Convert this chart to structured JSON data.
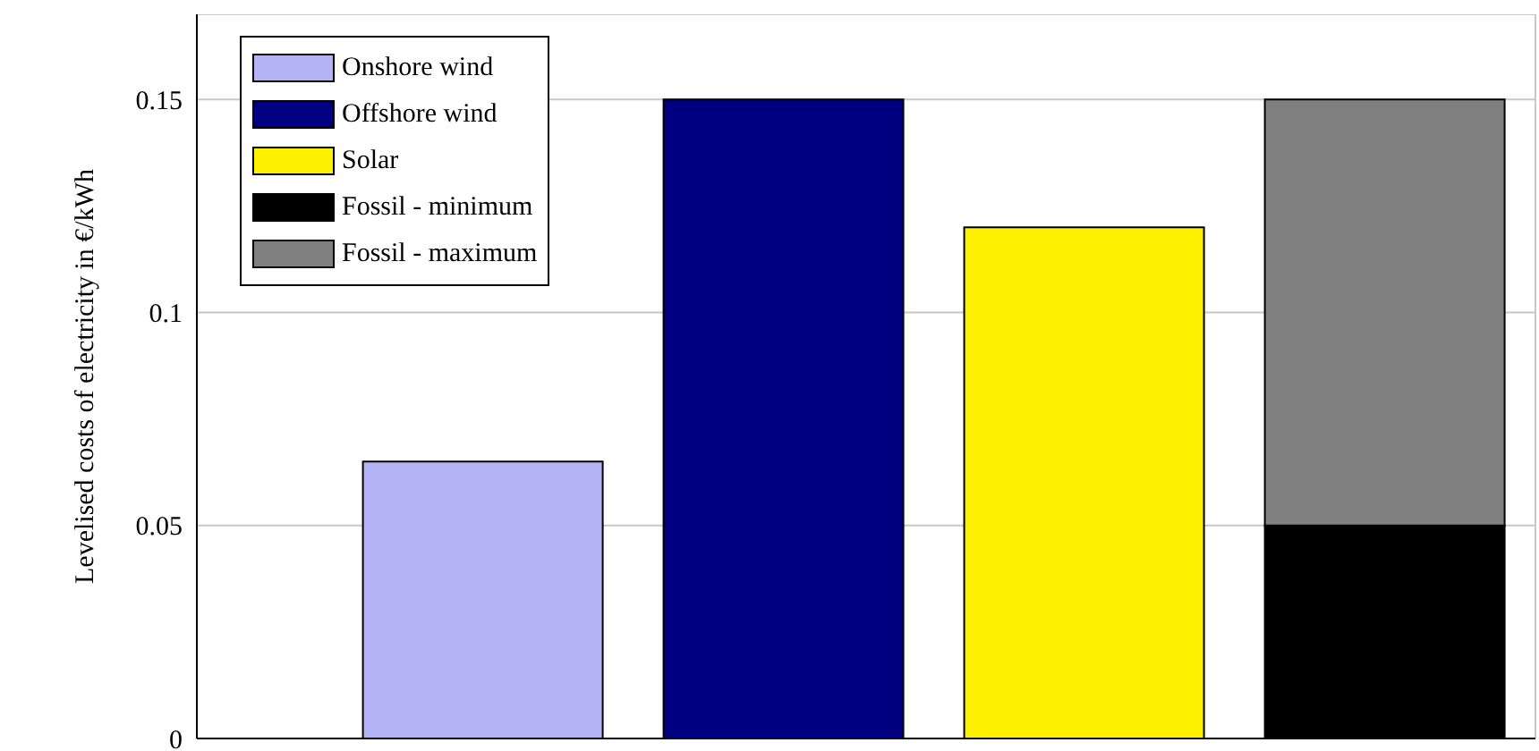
{
  "chart_data": {
    "type": "bar",
    "ylabel": "Levelised costs of electricity in €/kWh",
    "categories": [
      null,
      null,
      null,
      null
    ],
    "series": [
      {
        "name": "Onshore wind",
        "color": "#b3b3f5",
        "values": [
          0.065,
          null,
          null,
          null
        ]
      },
      {
        "name": "Offshore wind",
        "color": "#000080",
        "values": [
          null,
          0.15,
          null,
          null
        ]
      },
      {
        "name": "Solar",
        "color": "#fff000",
        "values": [
          null,
          null,
          0.12,
          null
        ]
      },
      {
        "name": "Fossil - minimum",
        "color": "#000000",
        "values": [
          null,
          null,
          null,
          0.05
        ]
      },
      {
        "name": "Fossil - maximum",
        "color": "#808080",
        "values": [
          null,
          null,
          null,
          0.1
        ]
      }
    ],
    "stacked": true,
    "ylim": [
      0,
      0.17
    ],
    "yticks": [
      0,
      0.05,
      0.1,
      0.15
    ],
    "grid": true,
    "legend": "top left",
    "tick_labels": "y"
  }
}
